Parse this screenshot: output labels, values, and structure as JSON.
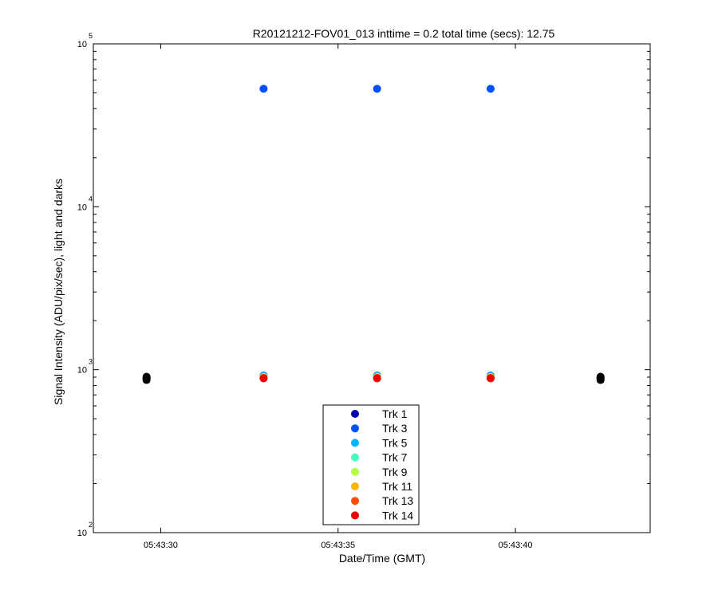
{
  "chart_data": {
    "type": "scatter",
    "title": "R20121212-FOV01_013 inttime = 0.2 total time (secs): 12.75",
    "xlabel": "Date/Time (GMT)",
    "ylabel": "Signal Intensity (ADU/pix/sec), light and darks",
    "x_axis": {
      "type": "time",
      "range": [
        "05:43:28.1",
        "05:43:43.8"
      ],
      "ticks": [
        "05:43:30",
        "05:43:35",
        "05:43:40"
      ]
    },
    "y_axis": {
      "scale": "log",
      "range": [
        100,
        100000
      ],
      "ticks": [
        {
          "value": 100,
          "base": "10",
          "exp": "2"
        },
        {
          "value": 1000,
          "base": "10",
          "exp": "3"
        },
        {
          "value": 10000,
          "base": "10",
          "exp": "4"
        },
        {
          "value": 100000,
          "base": "10",
          "exp": "5"
        }
      ]
    },
    "grid": false,
    "legend_position": "bottom-center",
    "series": [
      {
        "name": "Trk 1",
        "color": "#0000aa",
        "x": [
          "05:43:32.9",
          "05:43:36.1",
          "05:43:39.3"
        ],
        "y": [
          920,
          920,
          920
        ]
      },
      {
        "name": "Trk 3",
        "color": "#0050ff",
        "x": [
          "05:43:32.9",
          "05:43:36.1",
          "05:43:39.3"
        ],
        "y": [
          53000,
          53000,
          53000
        ]
      },
      {
        "name": "Trk 5",
        "color": "#00b4ff",
        "x": [
          "05:43:32.9",
          "05:43:36.1",
          "05:43:39.3"
        ],
        "y": [
          915,
          915,
          915
        ]
      },
      {
        "name": "Trk 7",
        "color": "#40ffc0",
        "x": [
          "05:43:32.9",
          "05:43:36.1",
          "05:43:39.3"
        ],
        "y": [
          905,
          905,
          905
        ]
      },
      {
        "name": "Trk 9",
        "color": "#b4ff40",
        "x": [
          "05:43:32.9",
          "05:43:36.1",
          "05:43:39.3"
        ],
        "y": [
          900,
          900,
          900
        ]
      },
      {
        "name": "Trk 11",
        "color": "#ffb400",
        "x": [
          "05:43:32.9",
          "05:43:36.1",
          "05:43:39.3"
        ],
        "y": [
          895,
          895,
          895
        ]
      },
      {
        "name": "Trk 13",
        "color": "#ff4c00",
        "x": [
          "05:43:32.9",
          "05:43:36.1",
          "05:43:39.3"
        ],
        "y": [
          890,
          890,
          890
        ]
      },
      {
        "name": "Trk 14",
        "color": "#ee0000",
        "x": [
          "05:43:32.9",
          "05:43:36.1",
          "05:43:39.3"
        ],
        "y": [
          885,
          885,
          885
        ]
      }
    ],
    "dark_points": {
      "color": "#000000",
      "x": [
        "05:43:29.6",
        "05:43:29.6",
        "05:43:29.6",
        "05:43:29.6",
        "05:43:29.6",
        "05:43:42.4",
        "05:43:42.4",
        "05:43:42.4",
        "05:43:42.4",
        "05:43:42.4"
      ],
      "y": [
        865,
        875,
        885,
        895,
        905,
        865,
        875,
        885,
        895,
        905
      ]
    }
  }
}
